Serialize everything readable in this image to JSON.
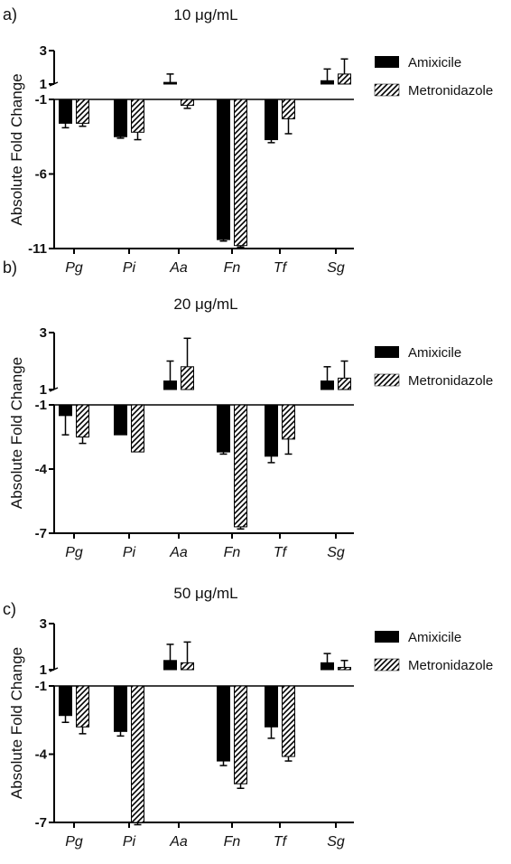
{
  "figure": {
    "categories": [
      "Pg",
      "Pi",
      "Aa",
      "Fn",
      "Tf",
      "Sg"
    ],
    "ylabel": "Absolute Fold Change",
    "legend": [
      "Amixicile",
      "Metronidazole"
    ],
    "colors": {
      "amixicile": "#000000",
      "metronidazole_hatch": "#000000",
      "background": "#ffffff"
    }
  },
  "chart_data": [
    {
      "type": "bar",
      "panel": "a)",
      "title": "10 μg/mL",
      "ylabel": "Absolute Fold Change",
      "categories": [
        "Pg",
        "Pi",
        "Aa",
        "Fn",
        "Tf",
        "Sg"
      ],
      "ylim": [
        -11,
        3
      ],
      "yticks": [
        3,
        1,
        -1,
        -6,
        -11
      ],
      "break_between": [
        -1,
        1
      ],
      "legend_position": "right",
      "series": [
        {
          "name": "Amixicile",
          "pattern": "solid",
          "values": [
            -2.6,
            -3.5,
            1.1,
            -10.4,
            -3.7,
            1.2
          ],
          "errors": [
            0.3,
            0.1,
            0.5,
            0.1,
            0.2,
            0.7
          ]
        },
        {
          "name": "Metronidazole",
          "pattern": "hatched",
          "values": [
            -2.6,
            -3.2,
            -1.4,
            -10.8,
            -2.3,
            1.6
          ],
          "errors": [
            0.2,
            0.5,
            0.2,
            0.1,
            1.0,
            0.9
          ]
        }
      ]
    },
    {
      "type": "bar",
      "panel": "b)",
      "title": "20 μg/mL",
      "ylabel": "Absolute Fold Change",
      "categories": [
        "Pg",
        "Pi",
        "Aa",
        "Fn",
        "Tf",
        "Sg"
      ],
      "ylim": [
        -7,
        3
      ],
      "yticks": [
        3,
        1,
        -1,
        -4,
        -7
      ],
      "break_between": [
        -1,
        1
      ],
      "legend_position": "right",
      "series": [
        {
          "name": "Amixicile",
          "pattern": "solid",
          "values": [
            -1.5,
            -2.4,
            1.3,
            -3.2,
            -3.4,
            1.3
          ],
          "errors": [
            0.9,
            0.0,
            0.7,
            0.1,
            0.3,
            0.5
          ]
        },
        {
          "name": "Metronidazole",
          "pattern": "hatched",
          "values": [
            -2.5,
            -3.2,
            1.8,
            -6.7,
            -2.6,
            1.4
          ],
          "errors": [
            0.3,
            0.0,
            1.0,
            0.1,
            0.7,
            0.6
          ]
        }
      ]
    },
    {
      "type": "bar",
      "panel": "c)",
      "title": "50 μg/mL",
      "ylabel": "Absolute Fold Change",
      "categories": [
        "Pg",
        "Pi",
        "Aa",
        "Fn",
        "Tf",
        "Sg"
      ],
      "ylim": [
        -7,
        3
      ],
      "yticks": [
        3,
        1,
        -1,
        -4,
        -7
      ],
      "break_between": [
        -1,
        1
      ],
      "legend_position": "right",
      "series": [
        {
          "name": "Amixicile",
          "pattern": "solid",
          "values": [
            -2.3,
            -3.0,
            1.4,
            -4.3,
            -2.8,
            1.3
          ],
          "errors": [
            0.3,
            0.2,
            0.7,
            0.2,
            0.5,
            0.4
          ]
        },
        {
          "name": "Metronidazole",
          "pattern": "hatched",
          "values": [
            -2.8,
            -7.0,
            1.3,
            -5.3,
            -4.1,
            1.1
          ],
          "errors": [
            0.3,
            0.1,
            0.9,
            0.2,
            0.2,
            0.3
          ]
        }
      ]
    }
  ]
}
